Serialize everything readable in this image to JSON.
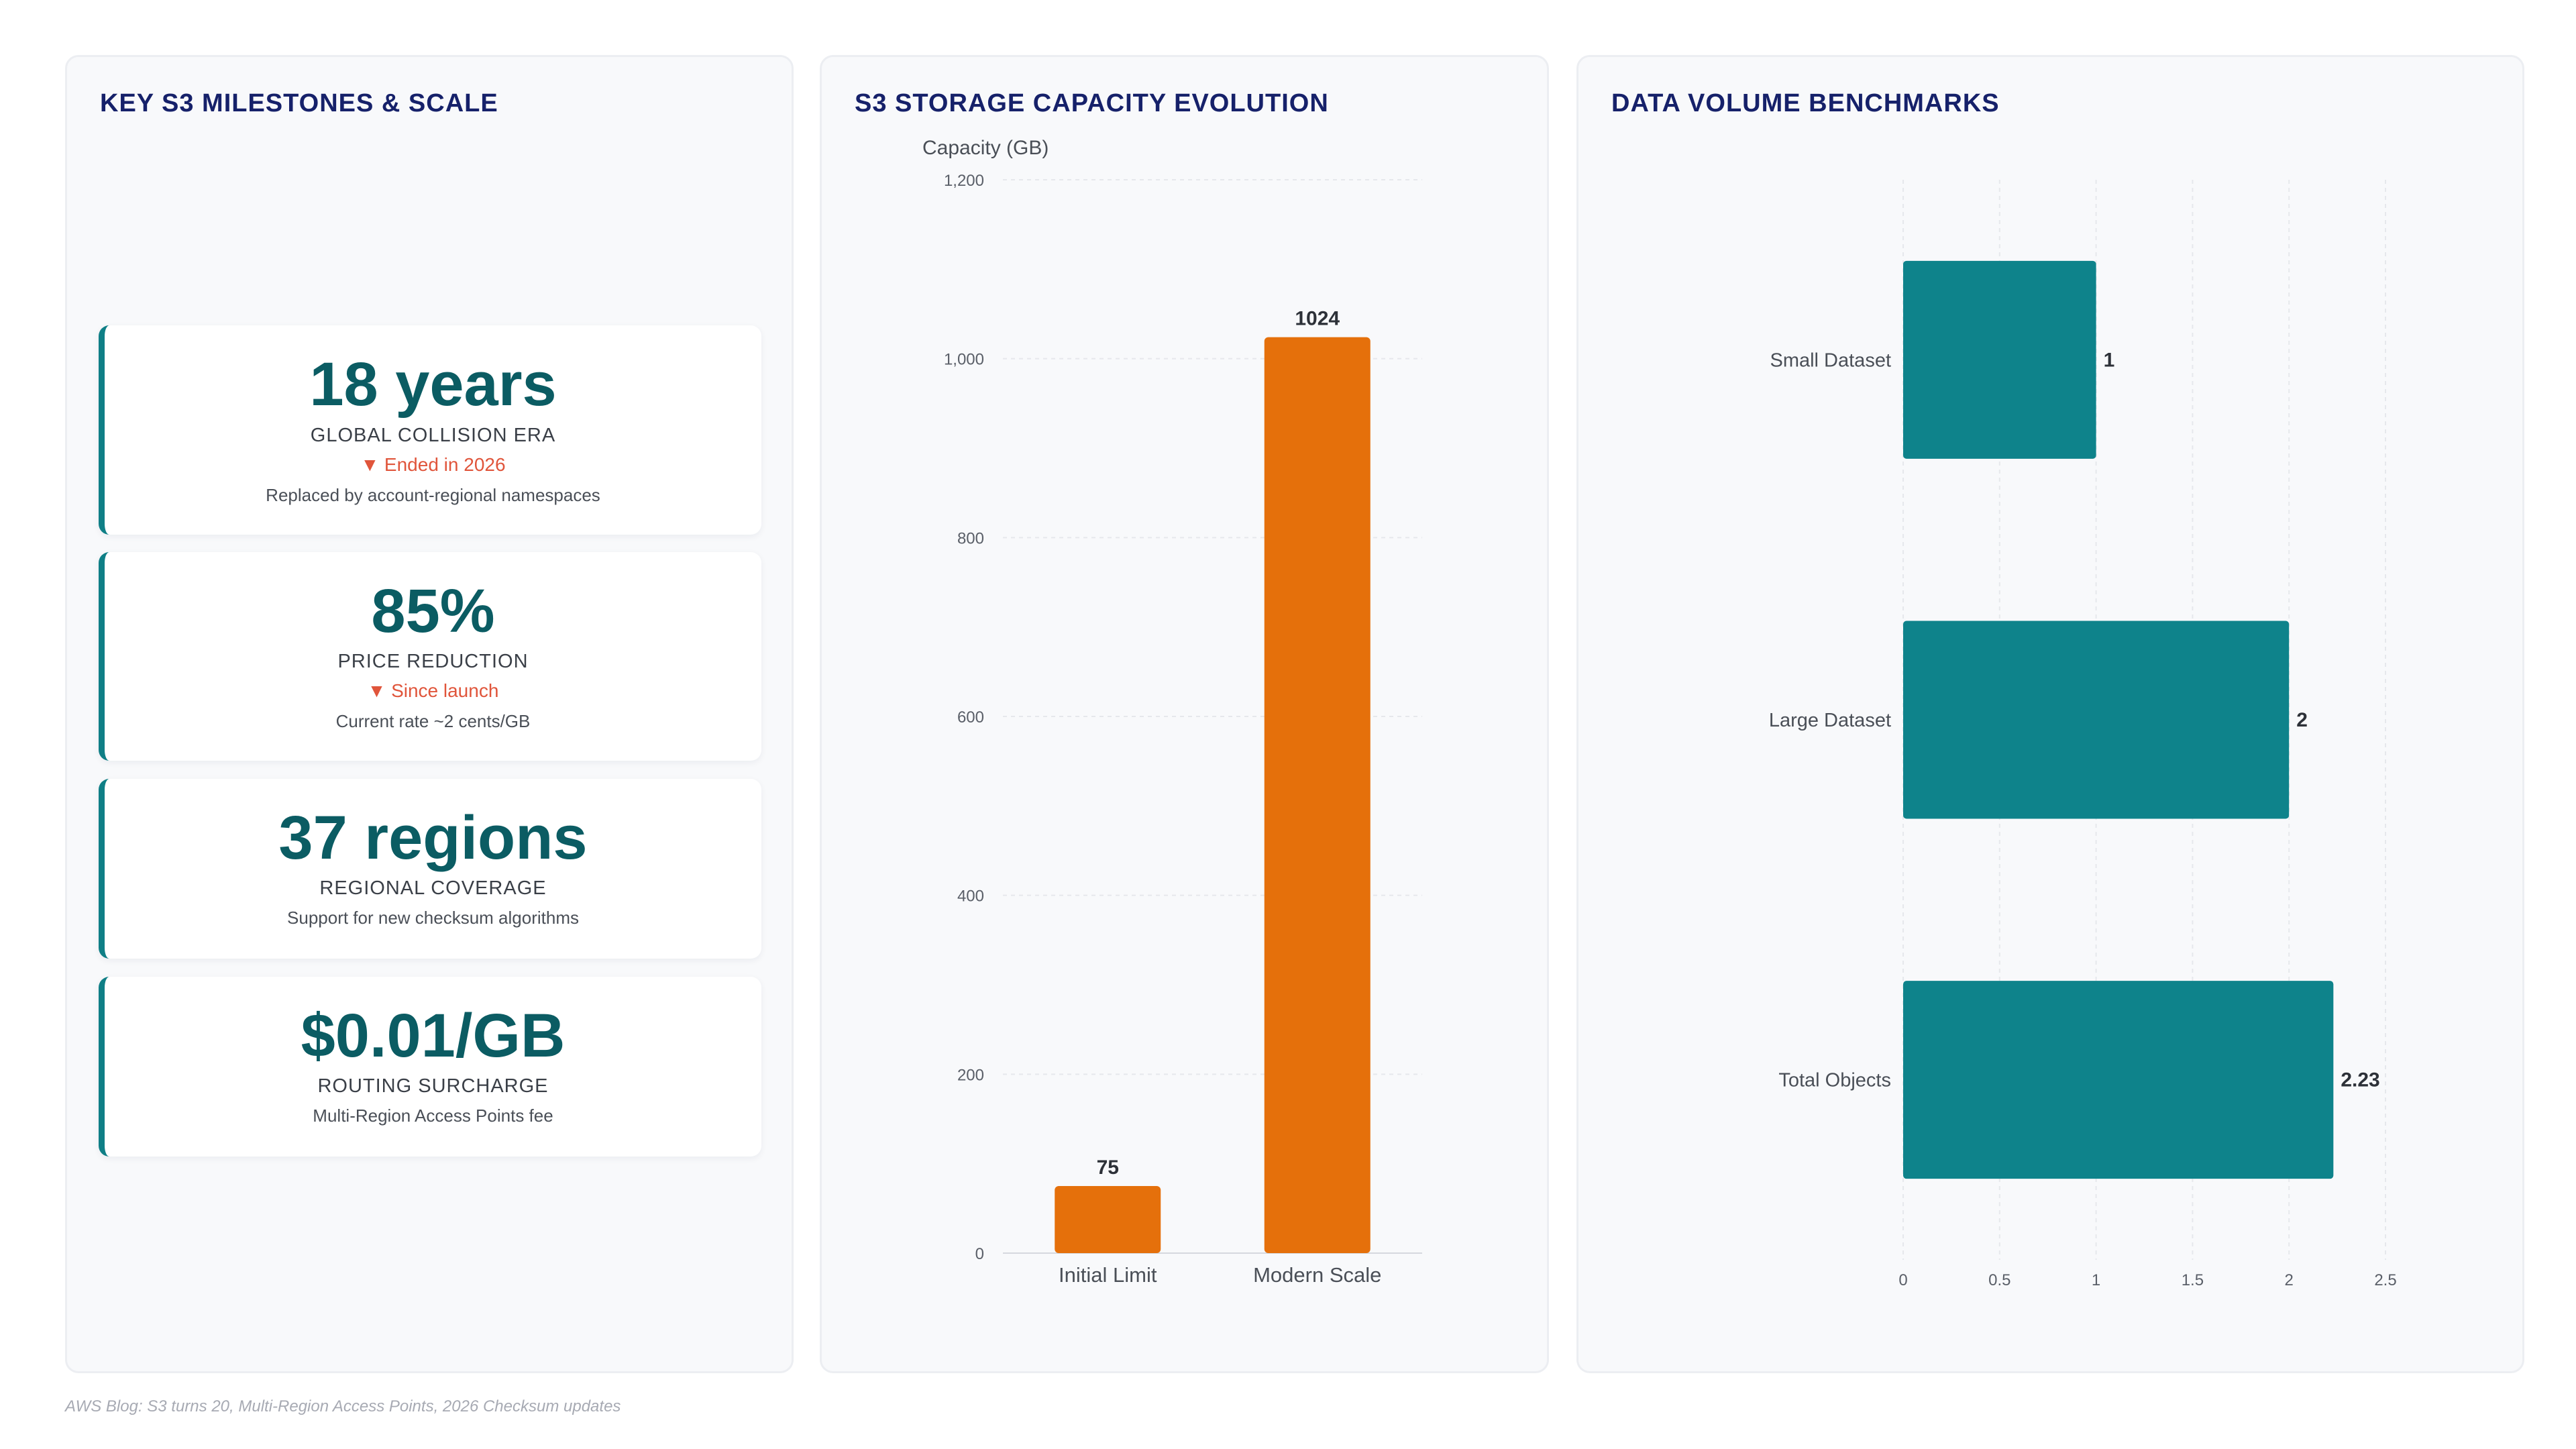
{
  "panels": {
    "kpi_title": "KEY S3 MILESTONES & SCALE",
    "capacity_title": "S3 STORAGE CAPACITY EVOLUTION",
    "volume_title": "DATA VOLUME BENCHMARKS"
  },
  "kpis": [
    {
      "value": "18 years",
      "label": "GLOBAL COLLISION ERA",
      "trend": "▼ Ended in 2026",
      "note": "Replaced by account-regional namespaces"
    },
    {
      "value": "85%",
      "label": "PRICE REDUCTION",
      "trend": "▼ Since launch",
      "note": "Current rate ~2 cents/GB"
    },
    {
      "value": "37 regions",
      "label": "REGIONAL COVERAGE",
      "note": "Support for new checksum algorithms"
    },
    {
      "value": "$0.01/GB",
      "label": "ROUTING SURCHARGE",
      "note": "Multi-Region Access Points fee"
    }
  ],
  "chart_data": [
    {
      "type": "bar",
      "title": "S3 STORAGE CAPACITY EVOLUTION",
      "ylabel": "Capacity (GB)",
      "categories": [
        "Initial Limit",
        "Modern Scale"
      ],
      "values": [
        75,
        1024
      ],
      "ylim": [
        0,
        1200
      ],
      "yticks": [
        0,
        200,
        400,
        600,
        800,
        1000,
        1200
      ],
      "ytick_labels": [
        "0",
        "200",
        "400",
        "600",
        "800",
        "1,000",
        "1,200"
      ],
      "data_labels": [
        "75",
        "1024"
      ],
      "color": "#e5700b",
      "grid": true
    },
    {
      "type": "bar",
      "orientation": "horizontal",
      "title": "DATA VOLUME BENCHMARKS",
      "categories": [
        "Small Dataset",
        "Large Dataset",
        "Total Objects"
      ],
      "values": [
        1,
        2,
        2.23
      ],
      "xlim": [
        0,
        2.5
      ],
      "xticks": [
        0,
        0.5,
        1,
        1.5,
        2,
        2.5
      ],
      "xtick_labels": [
        "0",
        "0.5",
        "1",
        "1.5",
        "2",
        "2.5"
      ],
      "data_labels": [
        "1",
        "2",
        "2.23"
      ],
      "color": "#0e838b",
      "grid": true
    }
  ],
  "footer": {
    "source": "AWS Blog: S3 turns 20, Multi-Region Access Points, 2026 Checksum updates"
  }
}
